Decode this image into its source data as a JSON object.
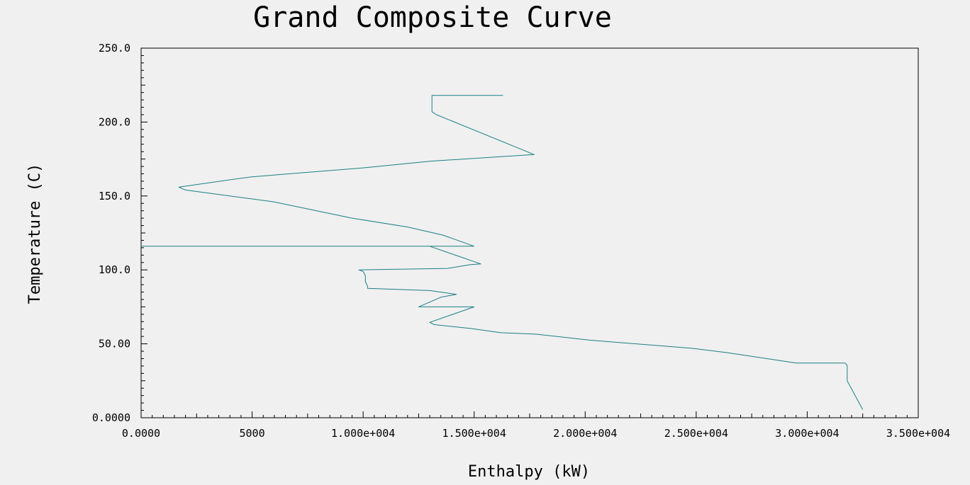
{
  "chart_data": {
    "type": "line",
    "title": "Grand Composite Curve",
    "xlabel": "Enthalpy (kW)",
    "ylabel": "Temperature (C)",
    "xlim": [
      0,
      35000
    ],
    "ylim": [
      0,
      250
    ],
    "x_ticks": [
      {
        "value": 0,
        "label": "0.0000"
      },
      {
        "value": 5000,
        "label": "5000"
      },
      {
        "value": 10000,
        "label": "1.000e+004"
      },
      {
        "value": 15000,
        "label": "1.500e+004"
      },
      {
        "value": 20000,
        "label": "2.000e+004"
      },
      {
        "value": 25000,
        "label": "2.500e+004"
      },
      {
        "value": 30000,
        "label": "3.000e+004"
      },
      {
        "value": 35000,
        "label": "3.500e+004"
      }
    ],
    "y_ticks": [
      {
        "value": 0,
        "label": "0.0000"
      },
      {
        "value": 50,
        "label": "50.00"
      },
      {
        "value": 100,
        "label": "100.0"
      },
      {
        "value": 150,
        "label": "150.0"
      },
      {
        "value": 200,
        "label": "200.0"
      },
      {
        "value": 250,
        "label": "250.0"
      }
    ],
    "grid": false,
    "line_color": "#1a7f86",
    "series": [
      {
        "points": [
          [
            16300,
            218
          ],
          [
            13100,
            218
          ],
          [
            13100,
            207
          ],
          [
            13300,
            205
          ],
          [
            17700,
            178
          ],
          [
            13000,
            173.5
          ],
          [
            10000,
            169
          ],
          [
            5000,
            163
          ],
          [
            4500,
            162
          ],
          [
            1700,
            156
          ],
          [
            2000,
            154
          ],
          [
            6000,
            146
          ],
          [
            9500,
            135
          ],
          [
            12000,
            129
          ],
          [
            13600,
            123.5
          ],
          [
            15000,
            116
          ],
          [
            0,
            116
          ],
          [
            13000,
            116
          ],
          [
            15300,
            104
          ],
          [
            14800,
            103.5
          ],
          [
            13800,
            101
          ],
          [
            9800,
            100
          ],
          [
            10000,
            99
          ],
          [
            10100,
            96
          ],
          [
            10100,
            92
          ],
          [
            10200,
            89
          ],
          [
            10200,
            87.5
          ],
          [
            13000,
            86
          ],
          [
            14200,
            83.5
          ],
          [
            13500,
            81.5
          ],
          [
            12500,
            75
          ],
          [
            15000,
            75
          ],
          [
            13000,
            64.5
          ],
          [
            13200,
            63
          ],
          [
            14800,
            60.5
          ],
          [
            16200,
            57.5
          ],
          [
            17800,
            56.5
          ],
          [
            20200,
            52.5
          ],
          [
            24800,
            47
          ],
          [
            26400,
            44
          ],
          [
            29500,
            37
          ],
          [
            31700,
            37
          ],
          [
            31800,
            35.5
          ],
          [
            31800,
            25
          ],
          [
            32500,
            5.5
          ]
        ]
      }
    ]
  }
}
